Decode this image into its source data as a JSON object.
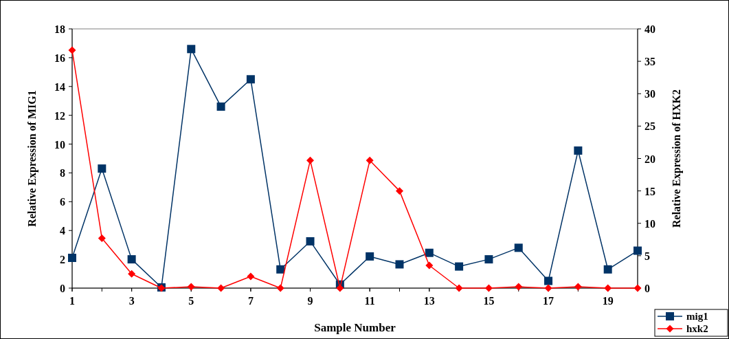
{
  "chart_data": {
    "type": "line",
    "xlabel": "Sample Number",
    "ylabel": "Relative Expression of MIG1",
    "y2label": "Relative Expression of HXK2",
    "x": [
      1,
      2,
      3,
      4,
      5,
      6,
      7,
      8,
      9,
      10,
      11,
      12,
      13,
      14,
      15,
      16,
      17,
      18,
      19,
      20
    ],
    "xlim": [
      1,
      20
    ],
    "xticks": [
      1,
      3,
      5,
      7,
      9,
      11,
      13,
      15,
      17,
      19
    ],
    "ylim": [
      0,
      18
    ],
    "yticks": [
      0,
      2,
      4,
      6,
      8,
      10,
      12,
      14,
      16,
      18
    ],
    "y2lim": [
      0,
      40
    ],
    "y2ticks": [
      0,
      5,
      10,
      15,
      20,
      25,
      30,
      35,
      40
    ],
    "legend": "bottom right",
    "grid": false,
    "series": [
      {
        "name": "mig1",
        "color": "#003366",
        "marker": "square",
        "values": [
          2.1,
          8.3,
          2.0,
          0.05,
          16.6,
          12.6,
          14.5,
          1.3,
          3.25,
          0.25,
          2.2,
          1.65,
          2.45,
          1.5,
          2.0,
          2.8,
          0.5,
          9.55,
          1.3,
          2.6
        ]
      },
      {
        "name": "hxk2",
        "color": "#ff0000",
        "marker": "diamond",
        "axis": "y2",
        "values": [
          36.7,
          7.7,
          2.2,
          0,
          0.2,
          0,
          1.8,
          0,
          19.7,
          0,
          19.7,
          15.0,
          3.5,
          0,
          0,
          0.2,
          0,
          0.2,
          0,
          0
        ]
      }
    ]
  }
}
